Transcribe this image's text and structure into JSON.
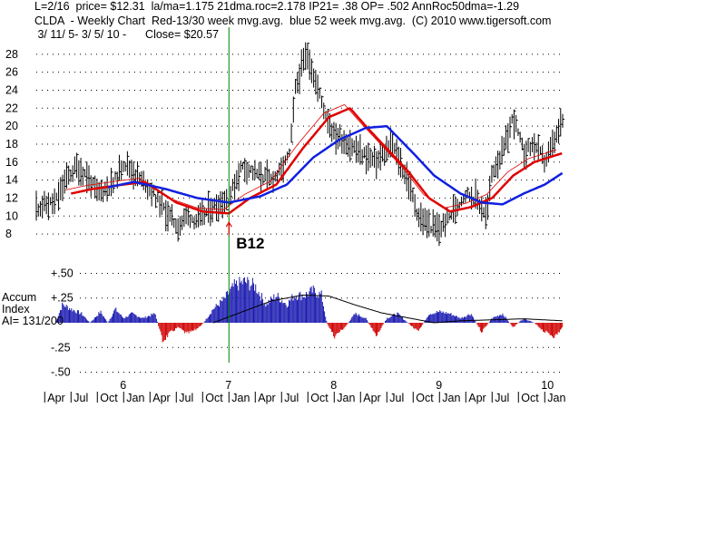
{
  "header": {
    "line1": "L=2/16  price= $12.31  la/ma=1.175 21dma.roc=2.178 IP21= .38 OP= .502 AnnRoc50dma=-1.29",
    "line2": "CLDA  - Weekly Chart  Red-13/30 week mvg.avg.  blue 52 week mvg.avg.  (C) 2010 www.tigersoft.com",
    "line3": " 3/ 11/ 5- 3/ 5/ 10 -      Close= $20.57"
  },
  "colors": {
    "price_bars": "#000000",
    "ma_red": "#e00000",
    "ma_blue": "#1020e0",
    "ai_pos": "#1a1ab0",
    "ai_neg": "#d00000",
    "signal_line": "#008000",
    "grid": "#000000"
  },
  "chart_data": [
    {
      "type": "line",
      "title": "CLDA - Weekly Chart",
      "y_ticks": [
        8,
        10,
        12,
        14,
        16,
        18,
        20,
        22,
        24,
        26,
        28
      ],
      "ylim": [
        7,
        30
      ],
      "year_labels": [
        {
          "label": "6",
          "t": 2006.0
        },
        {
          "label": "7",
          "t": 2007.0
        },
        {
          "label": "8",
          "t": 2008.0
        },
        {
          "label": "9",
          "t": 2009.0
        },
        {
          "label": "10",
          "t": 2010.0
        }
      ],
      "month_labels": [
        {
          "label": "Apr",
          "t": 2005.25
        },
        {
          "label": "Jul",
          "t": 2005.5
        },
        {
          "label": "Oct",
          "t": 2005.75
        },
        {
          "label": "Jan",
          "t": 2006.0
        },
        {
          "label": "Apr",
          "t": 2006.25
        },
        {
          "label": "Jul",
          "t": 2006.5
        },
        {
          "label": "Oct",
          "t": 2006.75
        },
        {
          "label": "Jan",
          "t": 2007.0
        },
        {
          "label": "Apr",
          "t": 2007.25
        },
        {
          "label": "Jul",
          "t": 2007.5
        },
        {
          "label": "Oct",
          "t": 2007.75
        },
        {
          "label": "Jan",
          "t": 2008.0
        },
        {
          "label": "Apr",
          "t": 2008.25
        },
        {
          "label": "Jul",
          "t": 2008.5
        },
        {
          "label": "Oct",
          "t": 2008.75
        },
        {
          "label": "Jan",
          "t": 2009.0
        },
        {
          "label": "Apr",
          "t": 2009.25
        },
        {
          "label": "Jul",
          "t": 2009.5
        },
        {
          "label": "Oct",
          "t": 2009.75
        },
        {
          "label": "Jan",
          "t": 2010.0
        }
      ],
      "xlim": [
        2005.17,
        2010.17
      ],
      "signal": {
        "label": "B12",
        "t": 2007.0,
        "price": 9.3
      },
      "price_keypoints": [
        {
          "t": 2005.17,
          "v": 11.0
        },
        {
          "t": 2005.35,
          "v": 11.5
        },
        {
          "t": 2005.45,
          "v": 14.0
        },
        {
          "t": 2005.55,
          "v": 15.5
        },
        {
          "t": 2005.65,
          "v": 14.5
        },
        {
          "t": 2005.75,
          "v": 12.5
        },
        {
          "t": 2005.9,
          "v": 13.5
        },
        {
          "t": 2006.0,
          "v": 16.0
        },
        {
          "t": 2006.12,
          "v": 14.5
        },
        {
          "t": 2006.25,
          "v": 13.0
        },
        {
          "t": 2006.4,
          "v": 10.5
        },
        {
          "t": 2006.52,
          "v": 8.8
        },
        {
          "t": 2006.6,
          "v": 10.0
        },
        {
          "t": 2006.7,
          "v": 9.5
        },
        {
          "t": 2006.85,
          "v": 11.0
        },
        {
          "t": 2007.0,
          "v": 12.0
        },
        {
          "t": 2007.12,
          "v": 15.5
        },
        {
          "t": 2007.25,
          "v": 14.8
        },
        {
          "t": 2007.4,
          "v": 14.0
        },
        {
          "t": 2007.5,
          "v": 15.0
        },
        {
          "t": 2007.58,
          "v": 17.0
        },
        {
          "t": 2007.63,
          "v": 24.0
        },
        {
          "t": 2007.7,
          "v": 27.0
        },
        {
          "t": 2007.75,
          "v": 28.0
        },
        {
          "t": 2007.82,
          "v": 25.0
        },
        {
          "t": 2007.9,
          "v": 22.0
        },
        {
          "t": 2008.0,
          "v": 19.0
        },
        {
          "t": 2008.15,
          "v": 18.0
        },
        {
          "t": 2008.25,
          "v": 17.0
        },
        {
          "t": 2008.4,
          "v": 16.0
        },
        {
          "t": 2008.55,
          "v": 18.0
        },
        {
          "t": 2008.7,
          "v": 14.0
        },
        {
          "t": 2008.8,
          "v": 10.0
        },
        {
          "t": 2008.9,
          "v": 9.0
        },
        {
          "t": 2009.0,
          "v": 8.5
        },
        {
          "t": 2009.1,
          "v": 10.0
        },
        {
          "t": 2009.25,
          "v": 12.5
        },
        {
          "t": 2009.35,
          "v": 12.0
        },
        {
          "t": 2009.45,
          "v": 10.0
        },
        {
          "t": 2009.5,
          "v": 15.0
        },
        {
          "t": 2009.6,
          "v": 17.0
        },
        {
          "t": 2009.7,
          "v": 21.0
        },
        {
          "t": 2009.8,
          "v": 17.0
        },
        {
          "t": 2009.9,
          "v": 18.0
        },
        {
          "t": 2010.0,
          "v": 16.0
        },
        {
          "t": 2010.1,
          "v": 18.5
        },
        {
          "t": 2010.17,
          "v": 20.57
        }
      ],
      "ma_red": [
        {
          "t": 2005.5,
          "v": 12.5
        },
        {
          "t": 2005.7,
          "v": 13.0
        },
        {
          "t": 2006.0,
          "v": 13.5
        },
        {
          "t": 2006.2,
          "v": 13.8
        },
        {
          "t": 2006.5,
          "v": 11.5
        },
        {
          "t": 2006.75,
          "v": 10.5
        },
        {
          "t": 2007.0,
          "v": 10.3
        },
        {
          "t": 2007.2,
          "v": 12.0
        },
        {
          "t": 2007.45,
          "v": 13.5
        },
        {
          "t": 2007.7,
          "v": 17.5
        },
        {
          "t": 2007.95,
          "v": 21.0
        },
        {
          "t": 2008.15,
          "v": 22.0
        },
        {
          "t": 2008.3,
          "v": 20.0
        },
        {
          "t": 2008.5,
          "v": 17.5
        },
        {
          "t": 2008.7,
          "v": 15.0
        },
        {
          "t": 2008.9,
          "v": 12.0
        },
        {
          "t": 2009.1,
          "v": 10.5
        },
        {
          "t": 2009.3,
          "v": 11.0
        },
        {
          "t": 2009.5,
          "v": 12.0
        },
        {
          "t": 2009.7,
          "v": 14.5
        },
        {
          "t": 2009.9,
          "v": 16.0
        },
        {
          "t": 2010.17,
          "v": 17.0
        }
      ],
      "ma_blue": [
        {
          "t": 2005.85,
          "v": 13.2
        },
        {
          "t": 2006.1,
          "v": 13.8
        },
        {
          "t": 2006.4,
          "v": 13.0
        },
        {
          "t": 2006.7,
          "v": 12.0
        },
        {
          "t": 2007.0,
          "v": 11.5
        },
        {
          "t": 2007.3,
          "v": 12.2
        },
        {
          "t": 2007.55,
          "v": 13.5
        },
        {
          "t": 2007.8,
          "v": 16.5
        },
        {
          "t": 2008.05,
          "v": 18.5
        },
        {
          "t": 2008.3,
          "v": 19.8
        },
        {
          "t": 2008.5,
          "v": 20.0
        },
        {
          "t": 2008.75,
          "v": 17.0
        },
        {
          "t": 2008.95,
          "v": 14.5
        },
        {
          "t": 2009.2,
          "v": 12.5
        },
        {
          "t": 2009.4,
          "v": 11.5
        },
        {
          "t": 2009.6,
          "v": 11.3
        },
        {
          "t": 2009.8,
          "v": 12.5
        },
        {
          "t": 2010.0,
          "v": 13.5
        },
        {
          "t": 2010.17,
          "v": 14.8
        }
      ]
    },
    {
      "type": "area",
      "title": "Accum Index",
      "ylabel_lines": [
        "Accum",
        "Index",
        "AI= 131/200"
      ],
      "y_ticks": [
        {
          "label": "+.50",
          "v": 0.5
        },
        {
          "label": "+.25",
          "v": 0.25
        },
        {
          "label": "-.25",
          "v": -0.25
        },
        {
          "label": "-.50",
          "v": -0.5
        }
      ],
      "ylim": [
        -0.55,
        0.55
      ],
      "ai_keypoints": [
        {
          "t": 2005.35,
          "v": 0.0
        },
        {
          "t": 2005.42,
          "v": 0.2
        },
        {
          "t": 2005.5,
          "v": 0.15
        },
        {
          "t": 2005.6,
          "v": 0.1
        },
        {
          "t": 2005.68,
          "v": 0.0
        },
        {
          "t": 2005.78,
          "v": 0.12
        },
        {
          "t": 2005.85,
          "v": 0.0
        },
        {
          "t": 2005.92,
          "v": 0.15
        },
        {
          "t": 2006.0,
          "v": 0.05
        },
        {
          "t": 2006.08,
          "v": 0.1
        },
        {
          "t": 2006.18,
          "v": 0.05
        },
        {
          "t": 2006.3,
          "v": 0.1
        },
        {
          "t": 2006.37,
          "v": -0.2
        },
        {
          "t": 2006.45,
          "v": -0.1
        },
        {
          "t": 2006.52,
          "v": -0.05
        },
        {
          "t": 2006.6,
          "v": -0.12
        },
        {
          "t": 2006.68,
          "v": -0.08
        },
        {
          "t": 2006.76,
          "v": 0.0
        },
        {
          "t": 2006.85,
          "v": 0.15
        },
        {
          "t": 2006.95,
          "v": 0.25
        },
        {
          "t": 2007.05,
          "v": 0.4
        },
        {
          "t": 2007.15,
          "v": 0.45
        },
        {
          "t": 2007.25,
          "v": 0.4
        },
        {
          "t": 2007.35,
          "v": 0.2
        },
        {
          "t": 2007.45,
          "v": 0.3
        },
        {
          "t": 2007.55,
          "v": 0.2
        },
        {
          "t": 2007.62,
          "v": 0.3
        },
        {
          "t": 2007.72,
          "v": 0.3
        },
        {
          "t": 2007.8,
          "v": 0.35
        },
        {
          "t": 2007.88,
          "v": 0.3
        },
        {
          "t": 2007.93,
          "v": 0.0
        },
        {
          "t": 2008.0,
          "v": -0.15
        },
        {
          "t": 2008.1,
          "v": -0.05
        },
        {
          "t": 2008.2,
          "v": 0.1
        },
        {
          "t": 2008.3,
          "v": 0.05
        },
        {
          "t": 2008.4,
          "v": -0.15
        },
        {
          "t": 2008.5,
          "v": 0.05
        },
        {
          "t": 2008.6,
          "v": 0.1
        },
        {
          "t": 2008.7,
          "v": 0.0
        },
        {
          "t": 2008.8,
          "v": -0.1
        },
        {
          "t": 2008.9,
          "v": 0.1
        },
        {
          "t": 2009.0,
          "v": 0.12
        },
        {
          "t": 2009.1,
          "v": 0.1
        },
        {
          "t": 2009.2,
          "v": 0.05
        },
        {
          "t": 2009.3,
          "v": 0.1
        },
        {
          "t": 2009.4,
          "v": -0.1
        },
        {
          "t": 2009.5,
          "v": 0.05
        },
        {
          "t": 2009.6,
          "v": 0.1
        },
        {
          "t": 2009.7,
          "v": -0.05
        },
        {
          "t": 2009.8,
          "v": 0.05
        },
        {
          "t": 2009.9,
          "v": 0.0
        },
        {
          "t": 2010.0,
          "v": -0.1
        },
        {
          "t": 2010.1,
          "v": -0.15
        },
        {
          "t": 2010.17,
          "v": -0.05
        }
      ],
      "ai_ma": [
        {
          "t": 2006.85,
          "v": 0.0
        },
        {
          "t": 2007.1,
          "v": 0.1
        },
        {
          "t": 2007.4,
          "v": 0.22
        },
        {
          "t": 2007.7,
          "v": 0.28
        },
        {
          "t": 2007.95,
          "v": 0.27
        },
        {
          "t": 2008.2,
          "v": 0.18
        },
        {
          "t": 2008.45,
          "v": 0.1
        },
        {
          "t": 2008.7,
          "v": 0.05
        },
        {
          "t": 2008.95,
          "v": 0.0
        },
        {
          "t": 2009.2,
          "v": 0.02
        },
        {
          "t": 2009.5,
          "v": 0.03
        },
        {
          "t": 2009.8,
          "v": 0.04
        },
        {
          "t": 2010.17,
          "v": 0.02
        }
      ]
    }
  ]
}
